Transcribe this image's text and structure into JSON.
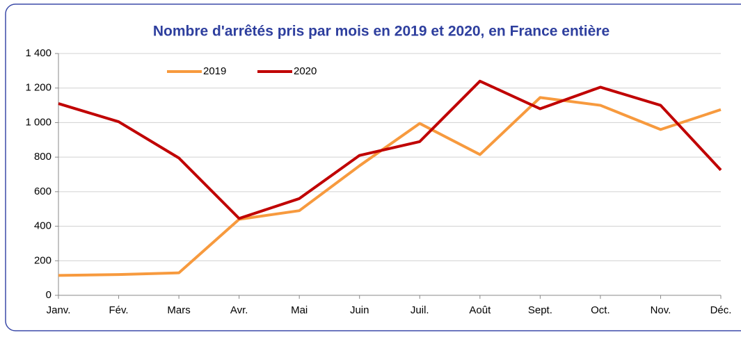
{
  "chart_data": {
    "type": "line",
    "title": "Nombre d'arrêtés pris par mois en 2019 et 2020, en France entière",
    "categories": [
      "Janv.",
      "Fév.",
      "Mars",
      "Avr.",
      "Mai",
      "Juin",
      "Juil.",
      "Août",
      "Sept.",
      "Oct.",
      "Nov.",
      "Déc."
    ],
    "series": [
      {
        "name": "2019",
        "color": "#f79a3e",
        "values": [
          115,
          120,
          130,
          440,
          490,
          750,
          995,
          815,
          1145,
          1100,
          960,
          1075
        ]
      },
      {
        "name": "2020",
        "color": "#c00000",
        "values": [
          1110,
          1005,
          795,
          445,
          560,
          810,
          890,
          1240,
          1080,
          1205,
          1100,
          725
        ]
      }
    ],
    "ylim": [
      0,
      1400
    ],
    "yticks": [
      0,
      200,
      400,
      600,
      800,
      {
        "value": 1000,
        "label": "1 000"
      },
      {
        "value": 1200,
        "label": "1 200"
      },
      {
        "value": 1400,
        "label": "1 400"
      }
    ],
    "grid": true,
    "legend": "top"
  }
}
